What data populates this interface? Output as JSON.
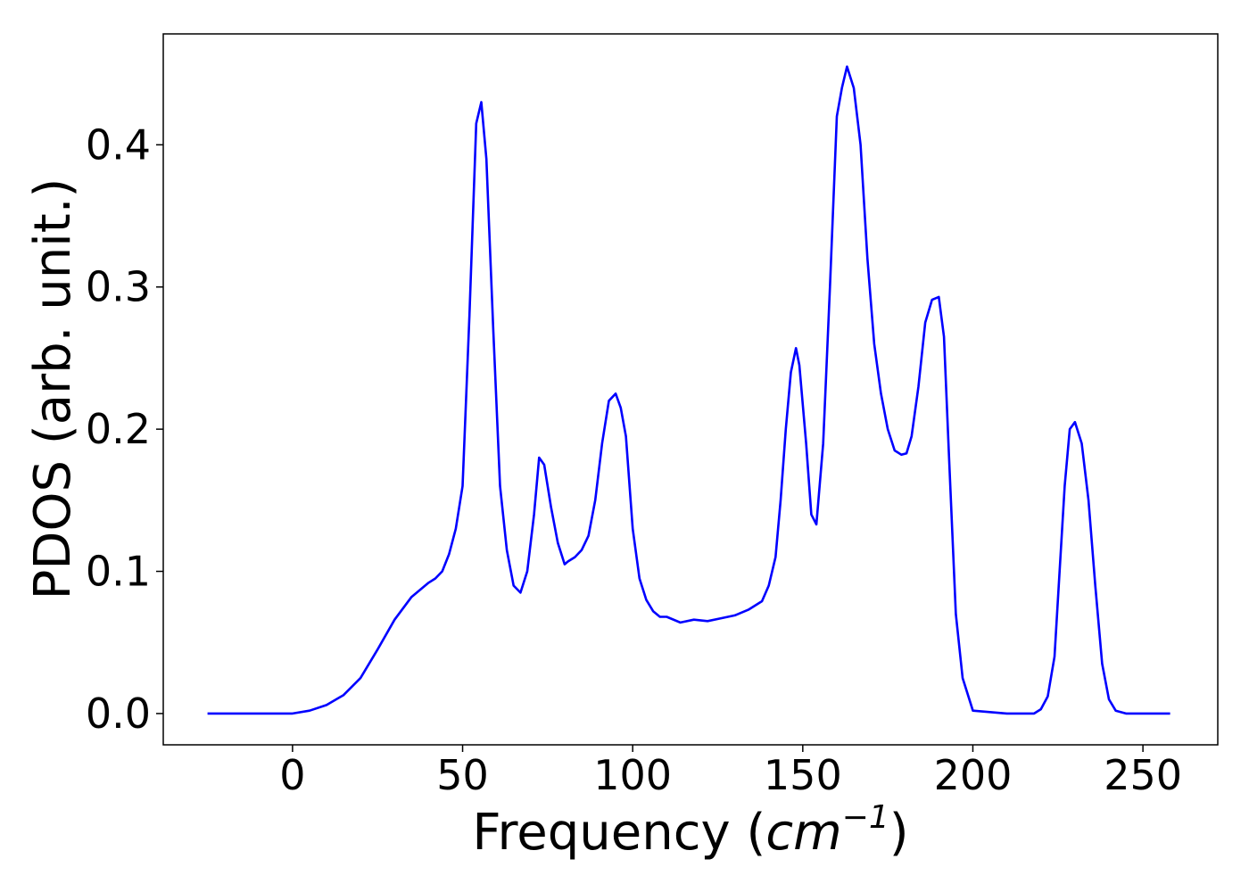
{
  "chart_data": {
    "type": "line",
    "title": "",
    "xlabel_main": "Frequency (",
    "xlabel_math": "cm",
    "xlabel_sup": "−1",
    "xlabel_end": ")",
    "ylabel": "PDOS (arb. unit.)",
    "xlim": [
      -38,
      272
    ],
    "ylim": [
      -0.022,
      0.478
    ],
    "xticks": [
      0,
      50,
      100,
      150,
      200,
      250
    ],
    "xtick_labels": [
      "0",
      "50",
      "100",
      "150",
      "200",
      "250"
    ],
    "yticks": [
      0.0,
      0.1,
      0.2,
      0.3,
      0.4
    ],
    "ytick_labels": [
      "0.0",
      "0.1",
      "0.2",
      "0.3",
      "0.4"
    ],
    "grid": false,
    "line_color": "#0000ff",
    "series": [
      {
        "x": [
          -25,
          -10,
          0,
          5,
          10,
          15,
          20,
          25,
          30,
          35,
          40,
          42,
          44,
          46,
          48,
          50,
          52,
          54,
          55.5,
          57,
          59,
          61,
          63,
          65,
          67,
          69,
          71,
          72.5,
          74,
          76,
          78,
          80,
          81,
          83,
          85,
          87,
          89,
          91,
          93,
          95,
          96.5,
          98,
          100,
          102,
          104,
          106,
          108,
          110,
          114,
          118,
          122,
          126,
          130,
          134,
          138,
          140,
          142,
          143.5,
          145,
          146.5,
          148,
          149,
          151,
          152.5,
          154,
          156,
          158,
          160,
          161.5,
          163,
          165,
          167,
          169,
          171,
          173,
          175,
          177,
          179,
          180.5,
          182,
          184,
          186,
          188,
          190,
          191.5,
          193,
          195,
          197,
          200,
          210,
          218,
          220,
          222,
          224,
          225.5,
          227,
          228.5,
          230,
          232,
          234,
          236,
          238,
          240,
          242,
          245,
          258
        ],
        "y": [
          0.0,
          0.0,
          0.0,
          0.002,
          0.006,
          0.013,
          0.025,
          0.045,
          0.066,
          0.082,
          0.092,
          0.095,
          0.1,
          0.112,
          0.13,
          0.16,
          0.28,
          0.415,
          0.43,
          0.39,
          0.27,
          0.16,
          0.115,
          0.09,
          0.085,
          0.1,
          0.14,
          0.18,
          0.175,
          0.145,
          0.12,
          0.105,
          0.107,
          0.11,
          0.115,
          0.125,
          0.15,
          0.19,
          0.22,
          0.225,
          0.215,
          0.195,
          0.13,
          0.095,
          0.08,
          0.072,
          0.068,
          0.068,
          0.064,
          0.066,
          0.065,
          0.067,
          0.069,
          0.073,
          0.079,
          0.09,
          0.11,
          0.15,
          0.2,
          0.24,
          0.257,
          0.245,
          0.19,
          0.14,
          0.133,
          0.19,
          0.3,
          0.42,
          0.44,
          0.455,
          0.44,
          0.4,
          0.32,
          0.26,
          0.225,
          0.2,
          0.185,
          0.182,
          0.183,
          0.195,
          0.23,
          0.275,
          0.291,
          0.293,
          0.265,
          0.18,
          0.07,
          0.025,
          0.002,
          0.0,
          0.0,
          0.003,
          0.012,
          0.04,
          0.1,
          0.16,
          0.2,
          0.205,
          0.19,
          0.15,
          0.09,
          0.035,
          0.01,
          0.002,
          0.0,
          0.0
        ]
      }
    ]
  }
}
